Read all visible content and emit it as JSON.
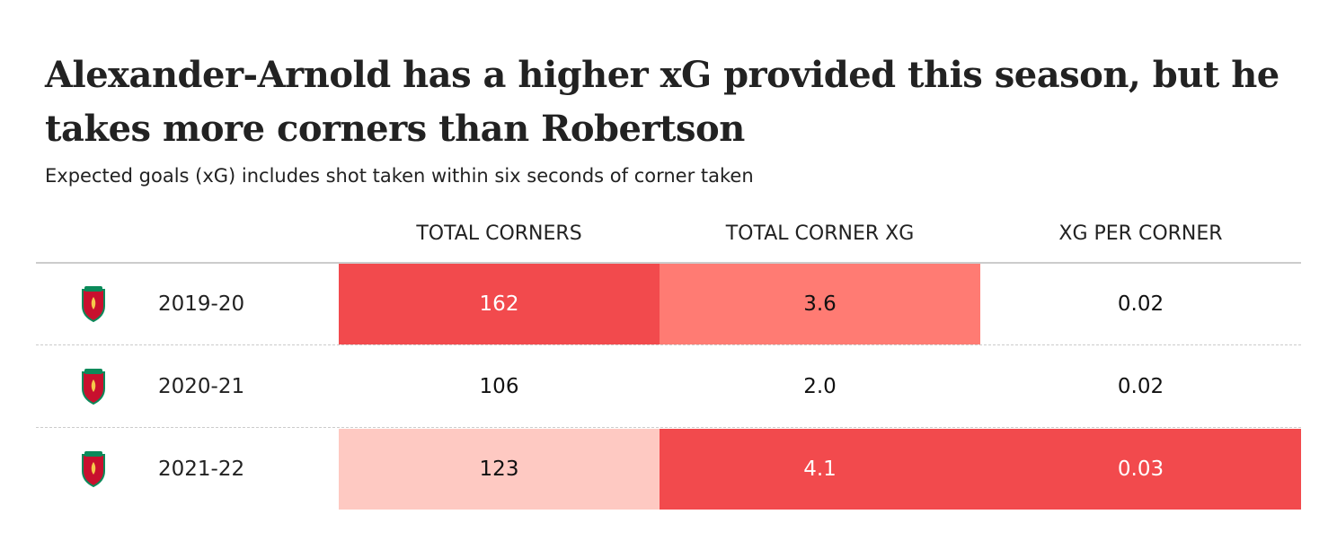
{
  "header": {
    "title": "Alexander-Arnold has a higher xG provided this season, but he takes more corners than Robertson",
    "subtitle": "Expected goals (xG) includes shot taken within six seconds of corner taken"
  },
  "table": {
    "columns": [
      "TOTAL CORNERS",
      "TOTAL CORNER XG",
      "XG PER CORNER"
    ],
    "rows": [
      [
        "2019-20",
        "162",
        "3.6",
        "0.02"
      ],
      [
        "2020-21",
        "106",
        "2.0",
        "0.02"
      ],
      [
        "2021-22",
        "123",
        "4.1",
        "0.03"
      ]
    ]
  }
}
